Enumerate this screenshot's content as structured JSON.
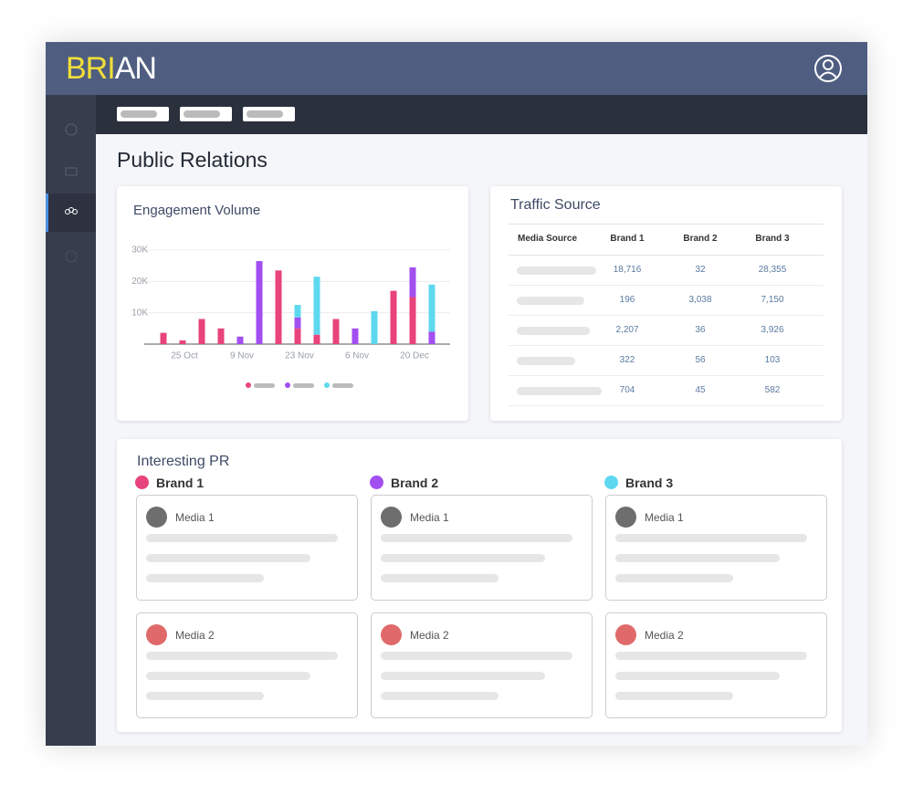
{
  "header": {
    "logo": [
      "BRI",
      "AN"
    ]
  },
  "page_title": "Public Relations",
  "chart_data": {
    "type": "bar",
    "stacked": true,
    "title": "Engagement Volume",
    "categories": [
      null,
      "25 Oct",
      null,
      null,
      "9 Nov",
      null,
      null,
      "23 Nov",
      null,
      null,
      "6 Nov",
      null,
      null,
      "20 Dec",
      null
    ],
    "series": [
      {
        "color": "#e8437c",
        "values": [
          3600,
          1200,
          8000,
          5000,
          0,
          0,
          23500,
          5000,
          3000,
          8000,
          0,
          0,
          17000,
          15000,
          0
        ]
      },
      {
        "color": "#a24ff0",
        "values": [
          0,
          0,
          0,
          0,
          2400,
          26500,
          0,
          3500,
          0,
          0,
          5000,
          0,
          0,
          9500,
          4000
        ]
      },
      {
        "color": "#5ed8ef",
        "values": [
          0,
          0,
          0,
          0,
          0,
          0,
          0,
          4000,
          18500,
          0,
          0,
          10500,
          0,
          0,
          15000
        ]
      }
    ],
    "ylim": [
      0,
      30000
    ],
    "yticks": [
      {
        "value": 10000,
        "label": "10K"
      },
      {
        "value": 20000,
        "label": "20K"
      },
      {
        "value": 30000,
        "label": "30K"
      }
    ],
    "grid": true
  },
  "table": {
    "title": "Traffic Source",
    "header": [
      "Media  Source",
      "Brand 1",
      "Brand 2",
      "Brand 3"
    ],
    "rows": [
      [
        null,
        "18,716",
        "32",
        "28,355"
      ],
      [
        null,
        "196",
        "3,038",
        "7,150"
      ],
      [
        null,
        "2,207",
        "36",
        "3,926"
      ],
      [
        null,
        "322",
        "56",
        "103"
      ],
      [
        null,
        "704",
        "45",
        "582"
      ]
    ]
  },
  "pr": {
    "title": "Interesting PR",
    "brands": [
      {
        "name": "Brand 1",
        "color": "#e8437c",
        "cards": [
          "Media 1",
          "Media 2"
        ]
      },
      {
        "name": "Brand 2",
        "color": "#a24ff0",
        "cards": [
          "Media 1",
          "Media 2"
        ]
      },
      {
        "name": "Brand 3",
        "color": "#5ed8ef",
        "cards": [
          "Media 1",
          "Media 2"
        ]
      }
    ]
  }
}
